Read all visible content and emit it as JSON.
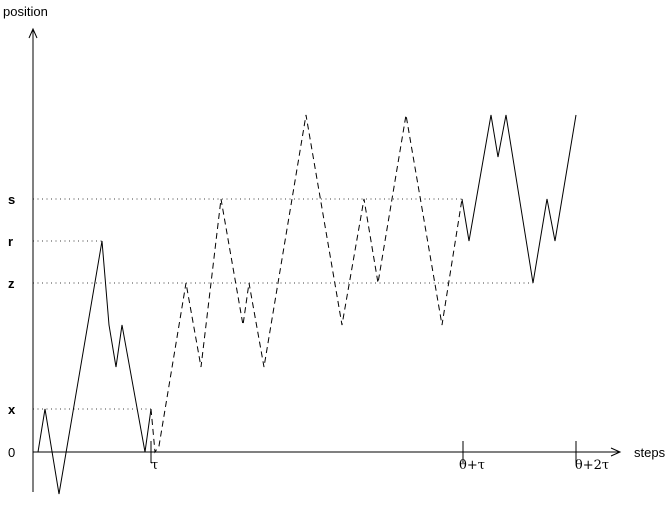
{
  "axes": {
    "y_label": "position",
    "x_label": "steps"
  },
  "levels": [
    {
      "label": "s"
    },
    {
      "label": "r"
    },
    {
      "label": "z"
    },
    {
      "label": "x"
    },
    {
      "label": "0"
    }
  ],
  "ticks": [
    {
      "label": "τ"
    },
    {
      "label": "θ+τ"
    },
    {
      "label": "θ+2τ"
    }
  ]
}
